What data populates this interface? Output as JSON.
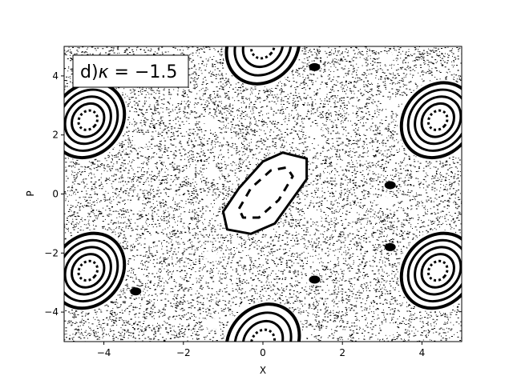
{
  "chart_data": {
    "type": "scatter",
    "subtype": "poincare-section",
    "title_prefix": "d)",
    "title_symbol": "κ",
    "title_value": " = −1.5",
    "xlabel": "X",
    "ylabel": "P",
    "xlim": [
      -5,
      5
    ],
    "ylim": [
      -5,
      5
    ],
    "xticks": [
      -4,
      -2,
      0,
      2,
      4
    ],
    "yticks": [
      -4,
      -2,
      0,
      2,
      4
    ],
    "xtick_labels": [
      "−4",
      "−2",
      "0",
      "2",
      "4"
    ],
    "ytick_labels": [
      "−4",
      "−2",
      "0",
      "2",
      "4"
    ],
    "grid": false,
    "legend": "none",
    "title_box_placement": "top-left",
    "marker_color": "#000000",
    "background_color": "#ffffff",
    "central_island": {
      "center": [
        0.25,
        0
      ],
      "outline": [
        [
          -1.0,
          -0.6
        ],
        [
          -0.6,
          0.2
        ],
        [
          0.0,
          1.1
        ],
        [
          0.5,
          1.4
        ],
        [
          1.1,
          1.2
        ],
        [
          1.1,
          0.5
        ],
        [
          0.3,
          -1.0
        ],
        [
          -0.3,
          -1.35
        ],
        [
          -0.9,
          -1.2
        ]
      ],
      "inner_dashed_orbit": [
        [
          -0.6,
          -0.5
        ],
        [
          -0.3,
          0.2
        ],
        [
          0.2,
          0.8
        ],
        [
          0.6,
          0.9
        ],
        [
          0.75,
          0.6
        ],
        [
          0.4,
          -0.2
        ],
        [
          -0.1,
          -0.8
        ],
        [
          -0.5,
          -0.8
        ]
      ]
    },
    "resonance_islands": [
      {
        "center": [
          -4.4,
          2.5
        ],
        "rx": 0.85,
        "ry": 1.35,
        "tilt_deg": 40,
        "rings": 5
      },
      {
        "center": [
          4.4,
          2.5
        ],
        "rx": 0.85,
        "ry": 1.35,
        "tilt_deg": 40,
        "rings": 5
      },
      {
        "center": [
          -4.4,
          -2.6
        ],
        "rx": 0.85,
        "ry": 1.35,
        "tilt_deg": 40,
        "rings": 5
      },
      {
        "center": [
          4.4,
          -2.6
        ],
        "rx": 0.85,
        "ry": 1.35,
        "tilt_deg": 40,
        "rings": 5
      },
      {
        "center": [
          0.0,
          5.0
        ],
        "rx": 0.85,
        "ry": 1.35,
        "tilt_deg": 40,
        "rings": 4
      },
      {
        "center": [
          0.0,
          -5.0
        ],
        "rx": 0.85,
        "ry": 1.35,
        "tilt_deg": 40,
        "rings": 4
      }
    ],
    "small_gaps": [
      [
        -1.3,
        2.4
      ],
      [
        1.3,
        2.1
      ],
      [
        -3.1,
        1.8
      ],
      [
        3.2,
        3.0
      ],
      [
        -1.3,
        0.7
      ],
      [
        1.3,
        -0.7
      ],
      [
        -3.2,
        -0.4
      ],
      [
        3.1,
        -0.3
      ],
      [
        -1.3,
        -2.1
      ],
      [
        1.2,
        -2.9
      ],
      [
        -1.3,
        -4.4
      ],
      [
        3.2,
        -4.6
      ],
      [
        3.1,
        4.6
      ],
      [
        -3.1,
        4.6
      ]
    ],
    "small_dark_spots": [
      [
        1.3,
        4.3
      ],
      [
        -3.2,
        -3.3
      ],
      [
        3.2,
        0.3
      ],
      [
        3.2,
        -1.8
      ],
      [
        1.3,
        -2.9
      ]
    ]
  }
}
